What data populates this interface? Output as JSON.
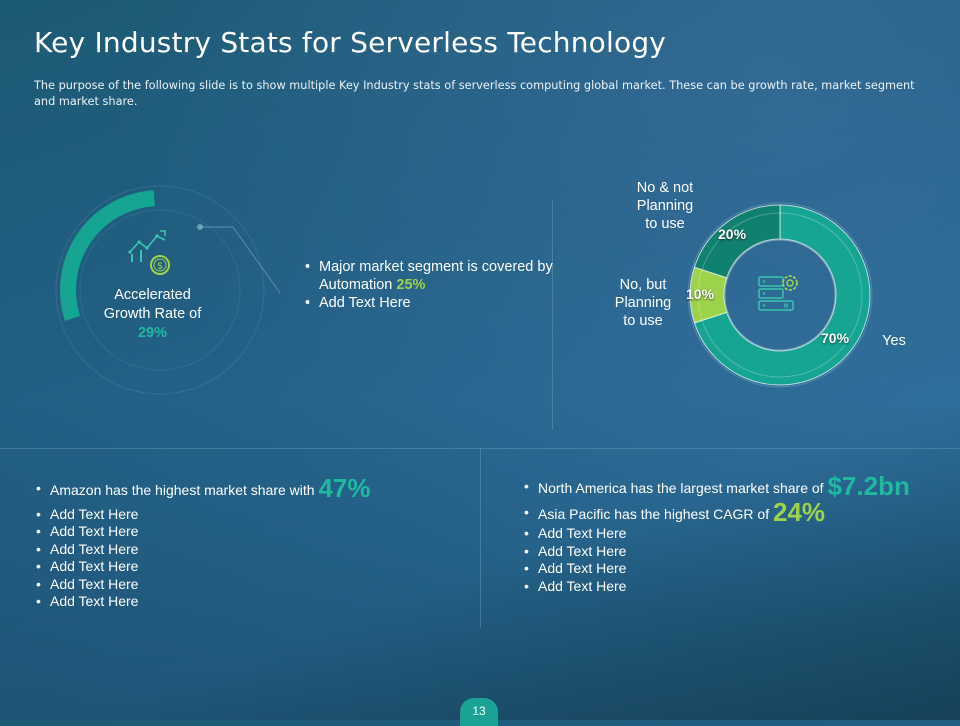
{
  "title": "Key Industry Stats for Serverless Technology",
  "subtitle": "The purpose of the following slide is to show multiple Key Industry stats of serverless computing global market. These can be growth rate, market segment and market share.",
  "growth": {
    "line1": "Accelerated",
    "line2": "Growth Rate of",
    "value": "29%",
    "fraction": 0.29
  },
  "segment": {
    "bullet1_text": "Major market segment is covered by Automation",
    "bullet1_value": "25%",
    "bullet2": "Add Text Here"
  },
  "donut": {
    "slices": [
      {
        "label": "Yes",
        "value": 70,
        "color": "#16a592"
      },
      {
        "label": "No, but Planning to use",
        "value": 10,
        "color": "#9dd34a"
      },
      {
        "label": "No & not Planning to use",
        "value": 20,
        "color": "#10806f"
      }
    ],
    "label_yes": "Yes",
    "label_no_but": [
      "No, but",
      "Planning",
      "to use"
    ],
    "label_no_not": [
      "No & not",
      "Planning",
      "to use"
    ],
    "val_yes": "70%",
    "val_no_but": "10%",
    "val_no_not": "20%"
  },
  "left_list": {
    "first_text": "Amazon has the highest market share with",
    "first_value": "47%",
    "items": [
      "Add Text Here",
      "Add Text Here",
      "Add Text Here",
      "Add Text Here",
      "Add Text Here",
      "Add Text Here"
    ]
  },
  "right_list": {
    "first_text": "North America has the largest market share of",
    "first_value": "$7.2bn",
    "second_text": "Asia Pacific has the highest CAGR of",
    "second_value": "24%",
    "items": [
      "Add Text Here",
      "Add Text Here",
      "Add Text Here",
      "Add Text Here"
    ]
  },
  "page_number": "13",
  "icons": {
    "growth": "growth-chart-dollar-icon",
    "servers": "server-gear-icon"
  },
  "colors": {
    "teal": "#16a592",
    "green": "#9dd34a",
    "dark_teal": "#10806f"
  }
}
